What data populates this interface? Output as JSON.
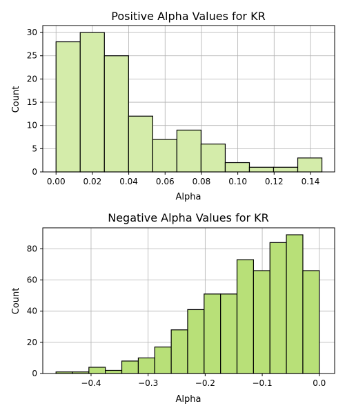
{
  "chart_data": [
    {
      "type": "bar",
      "title": "Positive Alpha Values for KR",
      "xlabel": "Alpha",
      "ylabel": "Count",
      "xlim": [
        -0.0073,
        0.1533
      ],
      "ylim": [
        0,
        31.5
      ],
      "x_ticks": [
        0.0,
        0.02,
        0.04,
        0.06,
        0.08,
        0.1,
        0.12,
        0.14
      ],
      "x_tick_labels": [
        "0.00",
        "0.02",
        "0.04",
        "0.06",
        "0.08",
        "0.10",
        "0.12",
        "0.14"
      ],
      "y_ticks": [
        0,
        5,
        10,
        15,
        20,
        25,
        30
      ],
      "y_tick_labels": [
        "0",
        "5",
        "10",
        "15",
        "20",
        "25",
        "30"
      ],
      "bins": [
        {
          "x0": 0.0,
          "x1": 0.0133,
          "value": 28
        },
        {
          "x0": 0.0133,
          "x1": 0.0266,
          "value": 30
        },
        {
          "x0": 0.0266,
          "x1": 0.0399,
          "value": 25
        },
        {
          "x0": 0.0399,
          "x1": 0.0532,
          "value": 12
        },
        {
          "x0": 0.0532,
          "x1": 0.0665,
          "value": 7
        },
        {
          "x0": 0.0665,
          "x1": 0.0798,
          "value": 9
        },
        {
          "x0": 0.0798,
          "x1": 0.0931,
          "value": 6
        },
        {
          "x0": 0.0931,
          "x1": 0.1064,
          "value": 2
        },
        {
          "x0": 0.1064,
          "x1": 0.1197,
          "value": 1
        },
        {
          "x0": 0.1197,
          "x1": 0.133,
          "value": 1
        },
        {
          "x0": 0.133,
          "x1": 0.1463,
          "value": 3
        }
      ],
      "bar_color": "#d4ecaa",
      "edge_color": "#000000",
      "grid": true
    },
    {
      "type": "bar",
      "title": "Negative Alpha Values for KR",
      "xlabel": "Alpha",
      "ylabel": "Count",
      "xlim": [
        -0.4846,
        0.0269
      ],
      "ylim": [
        0,
        93.45
      ],
      "x_ticks": [
        -0.4,
        -0.3,
        -0.2,
        -0.1,
        0.0
      ],
      "x_tick_labels": [
        "−0.4",
        "−0.3",
        "−0.2",
        "−0.1",
        "0.0"
      ],
      "y_ticks": [
        0,
        20,
        40,
        60,
        80
      ],
      "y_tick_labels": [
        "0",
        "20",
        "40",
        "60",
        "80"
      ],
      "bins": [
        {
          "x0": -0.4614,
          "x1": -0.4326,
          "value": 1
        },
        {
          "x0": -0.4326,
          "x1": -0.4038,
          "value": 1
        },
        {
          "x0": -0.4038,
          "x1": -0.3749,
          "value": 4
        },
        {
          "x0": -0.3749,
          "x1": -0.3461,
          "value": 2
        },
        {
          "x0": -0.3461,
          "x1": -0.3172,
          "value": 8
        },
        {
          "x0": -0.3172,
          "x1": -0.2884,
          "value": 10
        },
        {
          "x0": -0.2884,
          "x1": -0.2595,
          "value": 17
        },
        {
          "x0": -0.2595,
          "x1": -0.2307,
          "value": 28
        },
        {
          "x0": -0.2307,
          "x1": -0.2019,
          "value": 41
        },
        {
          "x0": -0.2019,
          "x1": -0.173,
          "value": 51
        },
        {
          "x0": -0.173,
          "x1": -0.1442,
          "value": 51
        },
        {
          "x0": -0.1442,
          "x1": -0.1153,
          "value": 73
        },
        {
          "x0": -0.1153,
          "x1": -0.0865,
          "value": 66
        },
        {
          "x0": -0.0865,
          "x1": -0.0577,
          "value": 84
        },
        {
          "x0": -0.0577,
          "x1": -0.0288,
          "value": 89
        },
        {
          "x0": -0.0288,
          "x1": 0.0,
          "value": 66
        }
      ],
      "bar_color": "#b8e078",
      "edge_color": "#000000",
      "grid": true
    }
  ]
}
